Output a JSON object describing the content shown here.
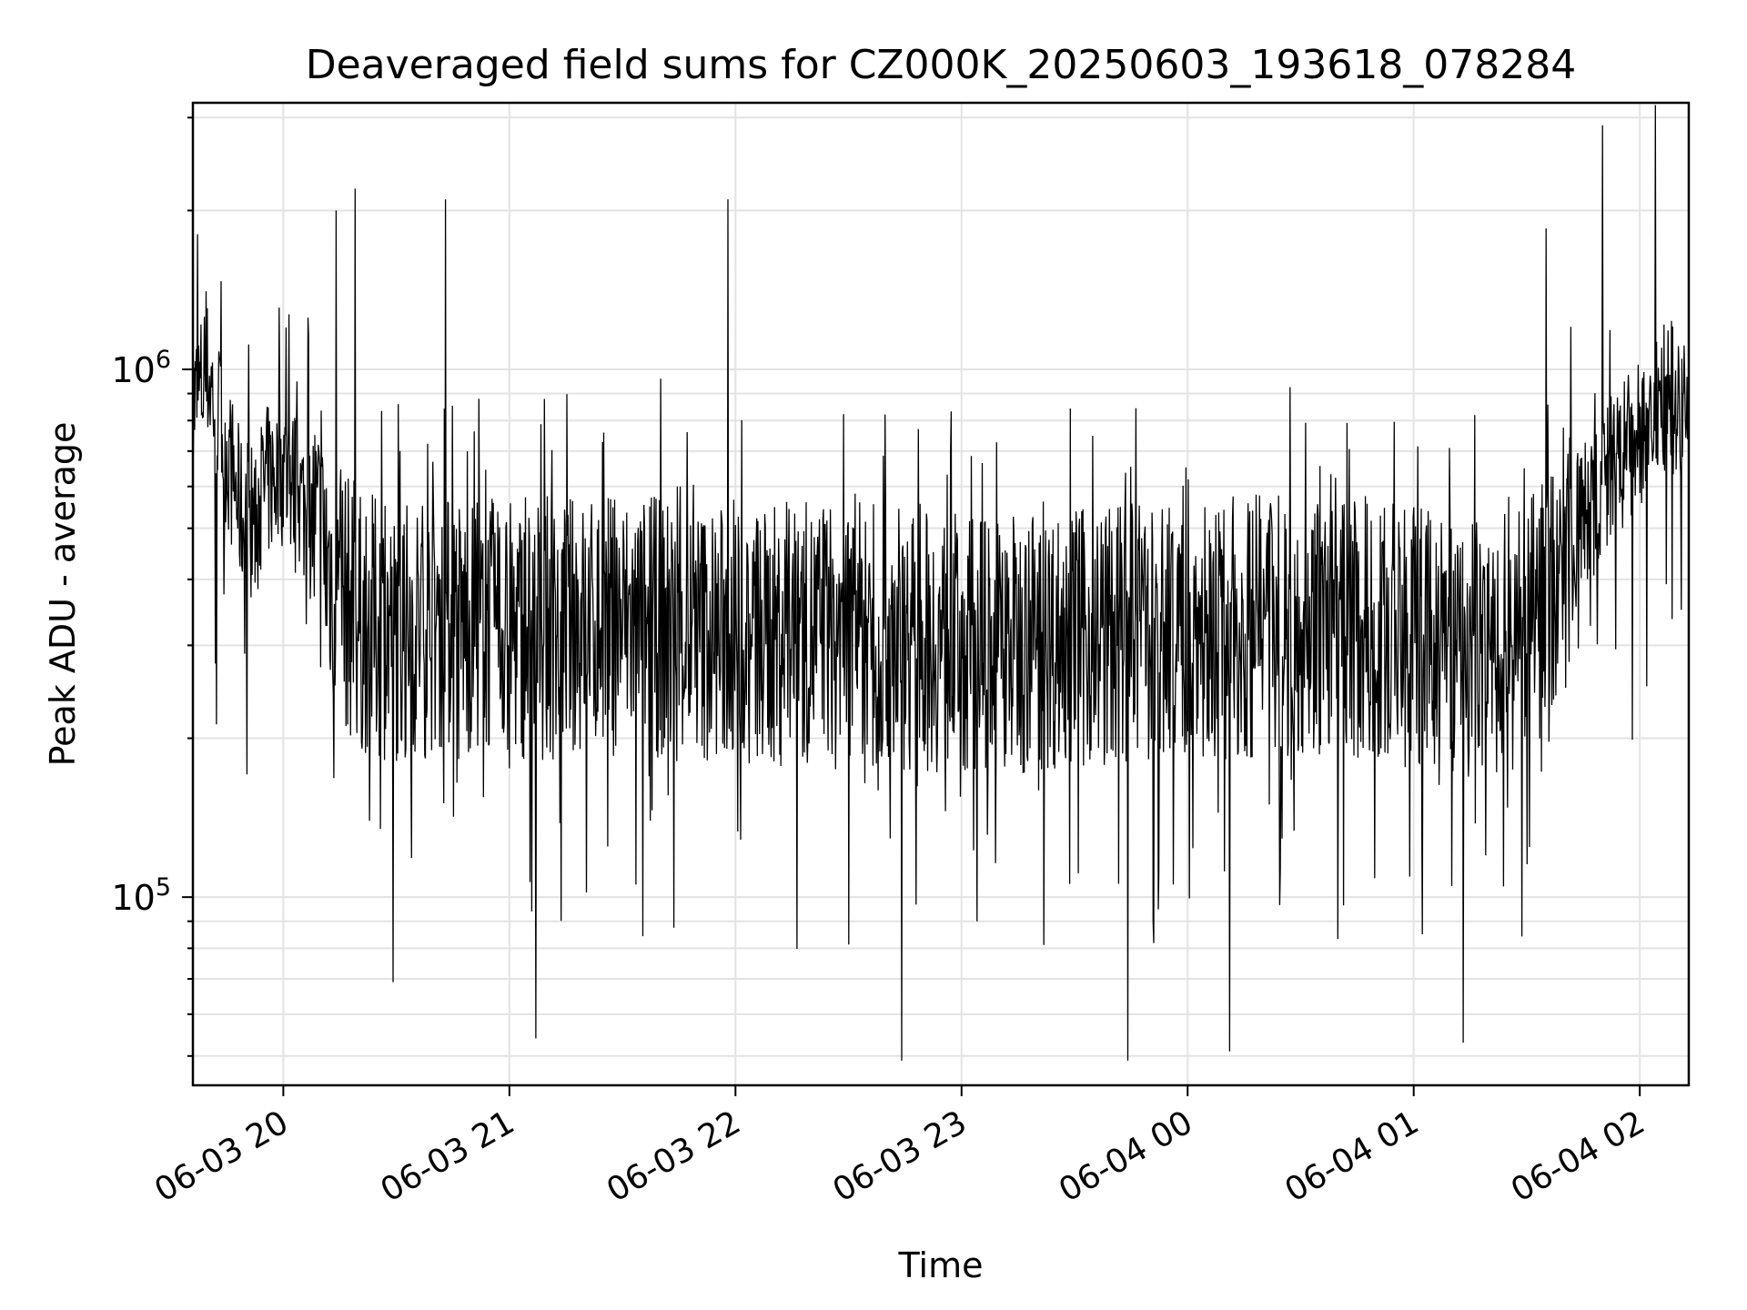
{
  "chart_data": {
    "type": "line",
    "title": "Deaveraged field sums for CZ000K_20250603_193618_078284",
    "xlabel": "Time",
    "ylabel": "Peak ADU - average",
    "y_scale": "log",
    "ylim": [
      44000,
      3200000
    ],
    "xlim": [
      "2025-06-03 19:36",
      "2025-06-04 02:13"
    ],
    "x_ticks": [
      {
        "t": "2025-06-03 20:00",
        "label": "06-03 20"
      },
      {
        "t": "2025-06-03 21:00",
        "label": "06-03 21"
      },
      {
        "t": "2025-06-03 22:00",
        "label": "06-03 22"
      },
      {
        "t": "2025-06-03 23:00",
        "label": "06-03 23"
      },
      {
        "t": "2025-06-04 00:00",
        "label": "06-04 00"
      },
      {
        "t": "2025-06-04 01:00",
        "label": "06-04 01"
      },
      {
        "t": "2025-06-04 02:00",
        "label": "06-04 02"
      }
    ],
    "y_ticks": [
      {
        "value": 100000,
        "base": "10",
        "exp": "5"
      },
      {
        "value": 1000000,
        "base": "10",
        "exp": "6"
      }
    ],
    "grid": true,
    "line_color": "#000000",
    "series": [
      {
        "x": [
          "2025-06-03 19:36",
          "2025-06-03 19:40",
          "2025-06-03 19:45",
          "2025-06-03 19:50",
          "2025-06-03 19:55",
          "2025-06-03 20:00",
          "2025-06-03 20:05",
          "2025-06-03 20:10",
          "2025-06-03 20:15",
          "2025-06-03 20:20",
          "2025-06-03 20:30",
          "2025-06-03 20:45",
          "2025-06-03 21:00",
          "2025-06-03 21:30",
          "2025-06-03 22:00",
          "2025-06-03 22:30",
          "2025-06-03 23:00",
          "2025-06-03 23:30",
          "2025-06-04 00:00",
          "2025-06-04 00:30",
          "2025-06-04 01:00",
          "2025-06-04 01:15",
          "2025-06-04 01:30",
          "2025-06-04 01:40",
          "2025-06-04 01:50",
          "2025-06-04 02:00",
          "2025-06-04 02:06",
          "2025-06-04 02:13"
        ],
        "values": [
          850000,
          980000,
          700000,
          490000,
          600000,
          650000,
          560000,
          460000,
          380000,
          330000,
          320000,
          330000,
          320000,
          330000,
          310000,
          320000,
          300000,
          310000,
          320000,
          330000,
          310000,
          300000,
          310000,
          450000,
          600000,
          750000,
          870000,
          900000
        ]
      }
    ],
    "spikes": [
      {
        "t": "2025-06-03 20:14",
        "value": 2000000
      },
      {
        "t": "2025-06-03 20:19",
        "value": 2200000
      },
      {
        "t": "2025-06-03 20:43",
        "value": 2100000
      },
      {
        "t": "2025-06-03 21:58",
        "value": 2100000
      },
      {
        "t": "2025-06-03 21:40",
        "value": 960000
      },
      {
        "t": "2025-06-04 01:50",
        "value": 2900000
      },
      {
        "t": "2025-06-04 02:04",
        "value": 3200000
      },
      {
        "t": "2025-06-04 01:35",
        "value": 1850000
      },
      {
        "t": "2025-06-03 20:29",
        "value": 69000
      },
      {
        "t": "2025-06-03 21:07",
        "value": 54000
      },
      {
        "t": "2025-06-03 22:44",
        "value": 49000
      },
      {
        "t": "2025-06-03 23:44",
        "value": 49000
      },
      {
        "t": "2025-06-04 00:11",
        "value": 51000
      },
      {
        "t": "2025-06-04 01:13",
        "value": 53000
      }
    ]
  }
}
